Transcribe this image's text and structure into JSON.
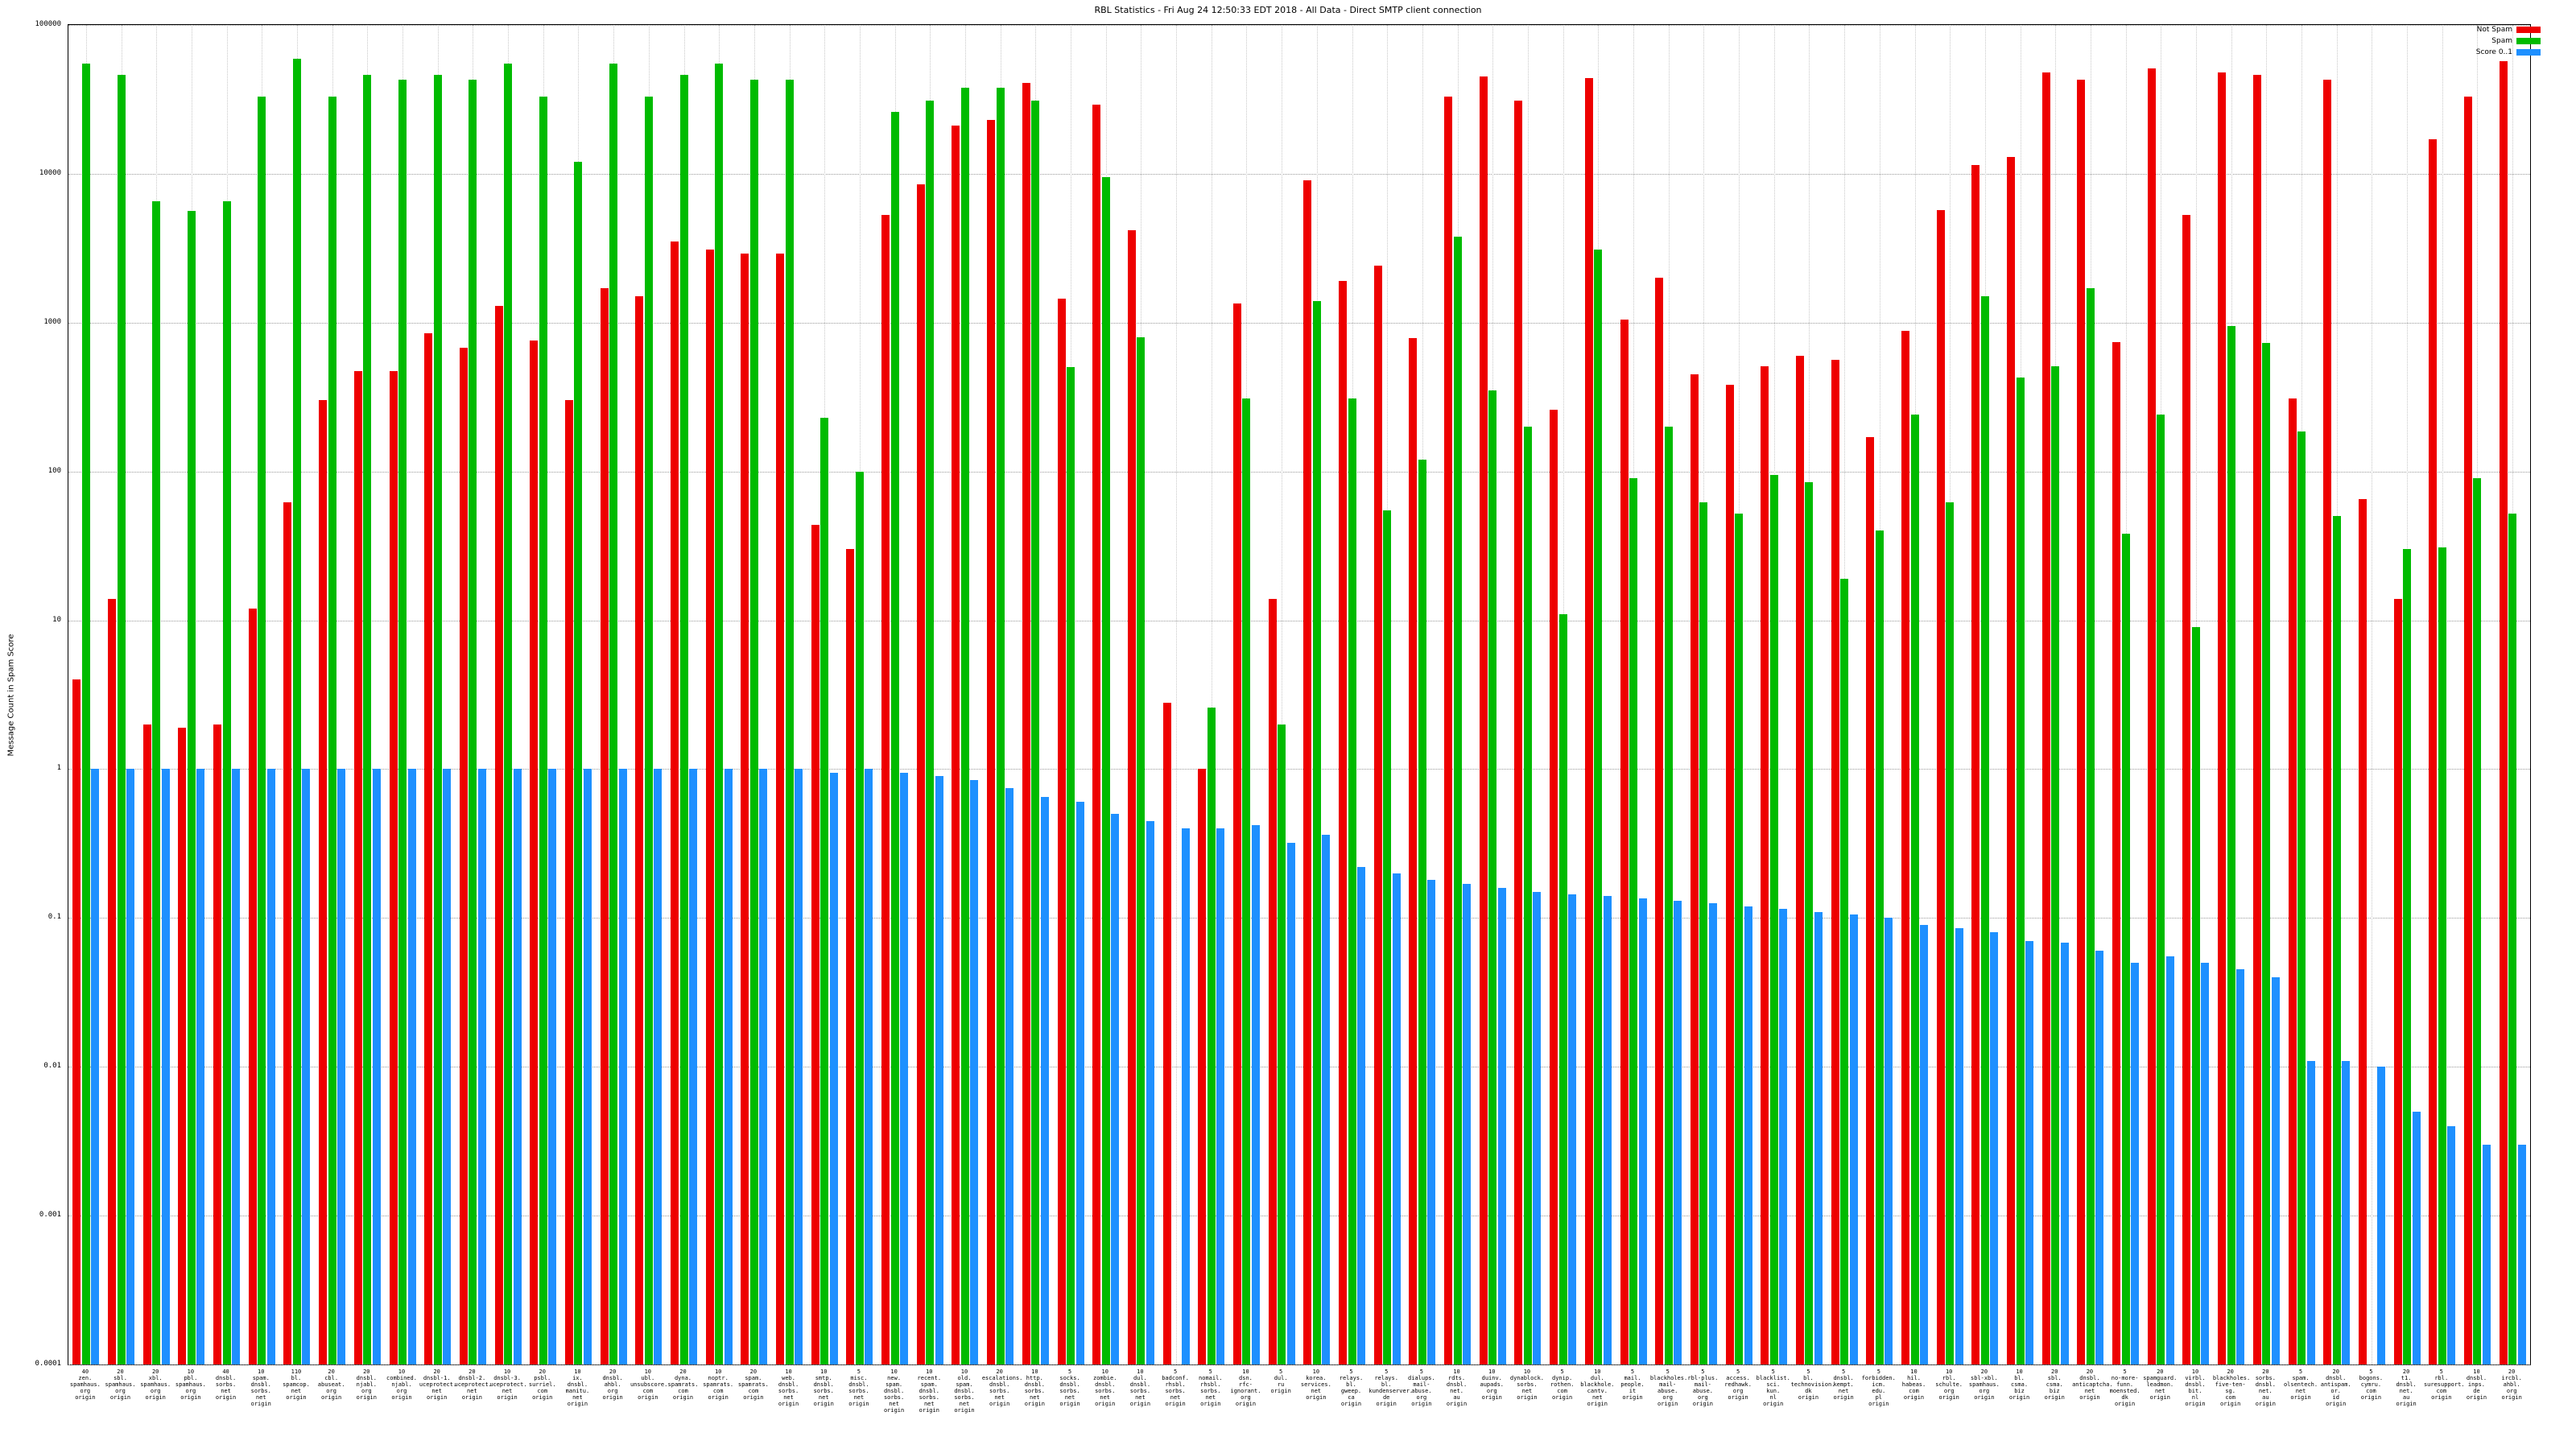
{
  "chart_data": {
    "type": "bar",
    "title": "RBL Statistics - Fri Aug 24 12:50:33 EDT 2018 - All Data - Direct SMTP client connection",
    "ylabel": "Message Count in Spam Score",
    "xlabel": "",
    "log_scale_y": true,
    "ylim": [
      0.0001,
      100000
    ],
    "grid": "dotted",
    "legend_position": "top-right",
    "yticks": [
      {
        "label": "100000",
        "value": 100000
      },
      {
        "label": "10000",
        "value": 10000
      },
      {
        "label": "1000",
        "value": 1000
      },
      {
        "label": "100",
        "value": 100
      },
      {
        "label": "10",
        "value": 10
      },
      {
        "label": "1",
        "value": 1
      },
      {
        "label": "0.1",
        "value": 0.1
      },
      {
        "label": "0.01",
        "value": 0.01
      },
      {
        "label": "0.001",
        "value": 0.001
      },
      {
        "label": "0.0001",
        "value": 0.0001
      }
    ],
    "legend": {
      "not_spam": "Not Spam",
      "spam": "Spam",
      "score": "Score 0..1"
    },
    "series": [
      {
        "name": "Not Spam",
        "color": "#ee0000",
        "values": [
          4,
          14,
          2,
          1.9,
          2,
          12,
          62,
          300,
          470,
          470,
          850,
          680,
          1300,
          760,
          300,
          1700,
          1500,
          3500,
          3100,
          2900,
          2900,
          44,
          30,
          5300,
          8500,
          21000,
          23000,
          41000,
          1450,
          29000,
          4200,
          2.8,
          1,
          1350,
          14,
          9000,
          1900,
          2400,
          790,
          33000,
          45000,
          31000,
          260,
          44000,
          1050,
          2000,
          450,
          380,
          510,
          600,
          560,
          170,
          880,
          5700,
          11500,
          13000,
          48000,
          43000,
          740,
          51000,
          5300,
          48000,
          46000,
          310,
          43000,
          65,
          14,
          17000,
          33000,
          57000
        ]
      },
      {
        "name": "Spam",
        "color": "#00bb00",
        "values": [
          55000,
          46000,
          6500,
          5600,
          6500,
          33000,
          59000,
          33000,
          46000,
          43000,
          46000,
          43000,
          55000,
          33000,
          12000,
          55000,
          33000,
          46000,
          55000,
          43000,
          43000,
          230,
          100,
          26000,
          31000,
          38000,
          38000,
          31000,
          500,
          9500,
          800,
          null,
          2.6,
          310,
          2,
          1400,
          310,
          55,
          120,
          3800,
          350,
          200,
          11,
          3100,
          90,
          200,
          62,
          52,
          95,
          85,
          19,
          40,
          240,
          62,
          1500,
          430,
          510,
          1700,
          38,
          240,
          9,
          950,
          730,
          185,
          50,
          null,
          30,
          31,
          90,
          52
        ]
      },
      {
        "name": "Score 0..1",
        "color": "#1e90ff",
        "values": [
          1,
          1,
          1,
          1,
          1,
          1,
          1,
          1,
          1,
          1,
          1,
          1,
          1,
          1,
          1,
          1,
          1,
          1,
          1,
          1,
          1,
          0.95,
          1,
          0.95,
          0.9,
          0.85,
          0.75,
          0.65,
          0.6,
          0.5,
          0.45,
          0.4,
          0.4,
          0.42,
          0.32,
          0.36,
          0.22,
          0.2,
          0.18,
          0.17,
          0.16,
          0.15,
          0.145,
          0.14,
          0.135,
          0.13,
          0.125,
          0.12,
          0.115,
          0.11,
          0.105,
          0.1,
          0.09,
          0.085,
          0.08,
          0.07,
          0.068,
          0.06,
          0.05,
          0.055,
          0.05,
          0.045,
          0.04,
          0.011,
          0.011,
          0.01,
          0.005,
          0.004,
          0.003,
          0.003
        ]
      }
    ],
    "categories": [
      "40\nzen.\nspamhaus.\norg\norigin",
      "20\nsbl.\nspamhaus.\norg\norigin",
      "20\nxbl.\nspamhaus.\norg\norigin",
      "10\npbl.\nspamhaus.\norg\norigin",
      "40\ndnsbl.\nsorbs.\nnet\norigin",
      "10\nspam.\ndnsbl.\nsorbs.\nnet\norigin",
      "110\nbl.\nspamcop.\nnet\norigin",
      "20\ncbl.\nabuseat.\norg\norigin",
      "20\ndnsbl.\nnjabl.\norg\norigin",
      "10\ncombined.\nnjabl.\norg\norigin",
      "20\ndnsbl-1.\nuceprotect.\nnet\norigin",
      "20\ndnsbl-2.\nuceprotect.\nnet\norigin",
      "10\ndnsbl-3.\nuceprotect.\nnet\norigin",
      "20\npsbl.\nsurriel.\ncom\norigin",
      "10\nix.\ndnsbl.\nmanitu.\nnet\norigin",
      "20\ndnsbl.\nahbl.\norg\norigin",
      "10\nubl.\nunsubscore.\ncom\norigin",
      "20\ndyna.\nspamrats.\ncom\norigin",
      "10\nnoptr.\nspamrats.\ncom\norigin",
      "20\nspam.\nspamrats.\ncom\norigin",
      "10\nweb.\ndnsbl.\nsorbs.\nnet\norigin",
      "10\nsmtp.\ndnsbl.\nsorbs.\nnet\norigin",
      "5\nmisc.\ndnsbl.\nsorbs.\nnet\norigin",
      "10\nnew.\nspam.\ndnsbl.\nsorbs.\nnet\norigin",
      "10\nrecent.\nspam.\ndnsbl.\nsorbs.\nnet\norigin",
      "10\nold.\nspam.\ndnsbl.\nsorbs.\nnet\norigin",
      "20\nescalations.\ndnsbl.\nsorbs.\nnet\norigin",
      "10\nhttp.\ndnsbl.\nsorbs.\nnet\norigin",
      "5\nsocks.\ndnsbl.\nsorbs.\nnet\norigin",
      "10\nzombie.\ndnsbl.\nsorbs.\nnet\norigin",
      "10\ndul.\ndnsbl.\nsorbs.\nnet\norigin",
      "5\nbadconf.\nrhsbl.\nsorbs.\nnet\norigin",
      "5\nnomail.\nrhsbl.\nsorbs.\nnet\norigin",
      "10\ndsn.\nrfc-ignorant.\norg\norigin",
      "5\ndul.\nru\norigin",
      "10\nkorea.\nservices.\nnet\norigin",
      "5\nrelays.\nbl.\ngweep.\nca\norigin",
      "5\nrelays.\nbl.\nkundenserver.\nde\norigin",
      "5\ndialups.\nmail-abuse.\norg\norigin",
      "10\nrdts.\ndnsbl.\nnet.\nau\norigin",
      "10\nduinv.\naupads.\norg\norigin",
      "10\ndynablock.\nsorbs.\nnet\norigin",
      "5\ndynip.\nrothen.\ncom\norigin",
      "10\ndul.\nblackhole.\ncantv.\nnet\norigin",
      "5\nmail.\npeople.\nit\norigin",
      "5\nblackholes.\nmail-abuse.\norg\norigin",
      "5\nrbl-plus.\nmail-abuse.\norg\norigin",
      "5\naccess.\nredhawk.\norg\norigin",
      "5\nblacklist.\nsci.\nkun.\nnl\norigin",
      "5\nbl.\ntechnovision.\ndk\norigin",
      "5\ndnsbl.\nkempt.\nnet\norigin",
      "5\nforbidden.\nicm.\nedu.\npl\norigin",
      "10\nhil.\nhabeas.\ncom\norigin",
      "10\nrbl.\nschulte.\norg\norigin",
      "20\nsbl-xbl.\nspamhaus.\norg\norigin",
      "10\nbl.\ncsma.\nbiz\norigin",
      "20\nsbl.\ncsma.\nbiz\norigin",
      "20\ndnsbl.\nanticaptcha.\nnet\norigin",
      "5\nno-more-funn.\nmoensted.\ndk\norigin",
      "20\nspamguard.\nleadmon.\nnet\norigin",
      "10\nvirbl.\ndnsbl.\nbit.\nnl\norigin",
      "20\nblackholes.\nfive-ten-sg.\ncom\norigin",
      "20\nsorbs.\ndnsbl.\nnet.\nau\norigin",
      "5\nspam.\nolsentech.\nnet\norigin",
      "20\ndnsbl.\nantispam.\nor.\nid\norigin",
      "5\nbogons.\ncymru.\ncom\norigin",
      "20\nt1.\ndnsbl.\nnet.\nau\norigin",
      "5\nrbl.\nsuresupport.\ncom\norigin",
      "10\ndnsbl.\ninps.\nde\norigin",
      "20\nircbl.\nahbl.\norg\norigin"
    ]
  }
}
